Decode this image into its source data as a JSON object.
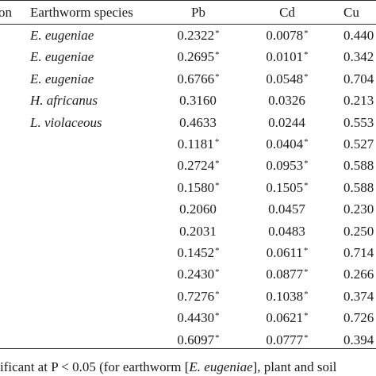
{
  "table": {
    "headers": {
      "first_col_fragment": "on",
      "species": "Earthworm species",
      "pb": "Pb",
      "cd": "Cd",
      "cu": "Cu"
    },
    "rows": [
      {
        "species": "E. eugeniae",
        "pb": "0.2322",
        "pb_sig": "*",
        "cd": "0.0078",
        "cd_sig": "*",
        "cu": "0.440"
      },
      {
        "species": "E. eugeniae",
        "pb": "0.2695",
        "pb_sig": "*",
        "cd": "0.0101",
        "cd_sig": "*",
        "cu": "0.342"
      },
      {
        "species": "E. eugeniae",
        "pb": "0.6766",
        "pb_sig": "*",
        "cd": "0.0548",
        "cd_sig": "*",
        "cu": "0.704"
      },
      {
        "species": "H. africanus",
        "pb": "0.3160",
        "pb_sig": "",
        "cd": "0.0326",
        "cd_sig": "",
        "cu": "0.213"
      },
      {
        "species": "L. violaceous",
        "pb": "0.4633",
        "pb_sig": "",
        "cd": "0.0244",
        "cd_sig": "",
        "cu": "0.553"
      },
      {
        "species": "",
        "pb": "0.1181",
        "pb_sig": "*",
        "cd": "0.0404",
        "cd_sig": "*",
        "cu": "0.527"
      },
      {
        "species": "",
        "pb": "0.2724",
        "pb_sig": "*",
        "cd": "0.0953",
        "cd_sig": "*",
        "cu": "0.588"
      },
      {
        "species": "",
        "pb": "0.1580",
        "pb_sig": "*",
        "cd": "0.1505",
        "cd_sig": "*",
        "cu": "0.588"
      },
      {
        "species": "",
        "pb": "0.2060",
        "pb_sig": "",
        "cd": "0.0457",
        "cd_sig": "",
        "cu": "0.230"
      },
      {
        "species": "",
        "pb": "0.2031",
        "pb_sig": "",
        "cd": "0.0483",
        "cd_sig": "",
        "cu": "0.250"
      },
      {
        "species": "",
        "pb": "0.1452",
        "pb_sig": "*",
        "cd": "0.0611",
        "cd_sig": "*",
        "cu": "0.714"
      },
      {
        "species": "",
        "pb": "0.2430",
        "pb_sig": "*",
        "cd": "0.0877",
        "cd_sig": "*",
        "cu": "0.266"
      },
      {
        "species": "",
        "pb": "0.7276",
        "pb_sig": "*",
        "cd": "0.1038",
        "cd_sig": "*",
        "cu": "0.374"
      },
      {
        "species": "",
        "pb": "0.4430",
        "pb_sig": "*",
        "cd": "0.0621",
        "cd_sig": "*",
        "cu": "0.726"
      },
      {
        "species": "",
        "pb": "0.6097",
        "pb_sig": "*",
        "cd": "0.0777",
        "cd_sig": "*",
        "cu": "0.394"
      }
    ]
  },
  "footnote": {
    "part1": "ificant at P < 0.05 (for earthworm [",
    "italic": "E. eugeniae",
    "part2": "], plant and soil"
  }
}
